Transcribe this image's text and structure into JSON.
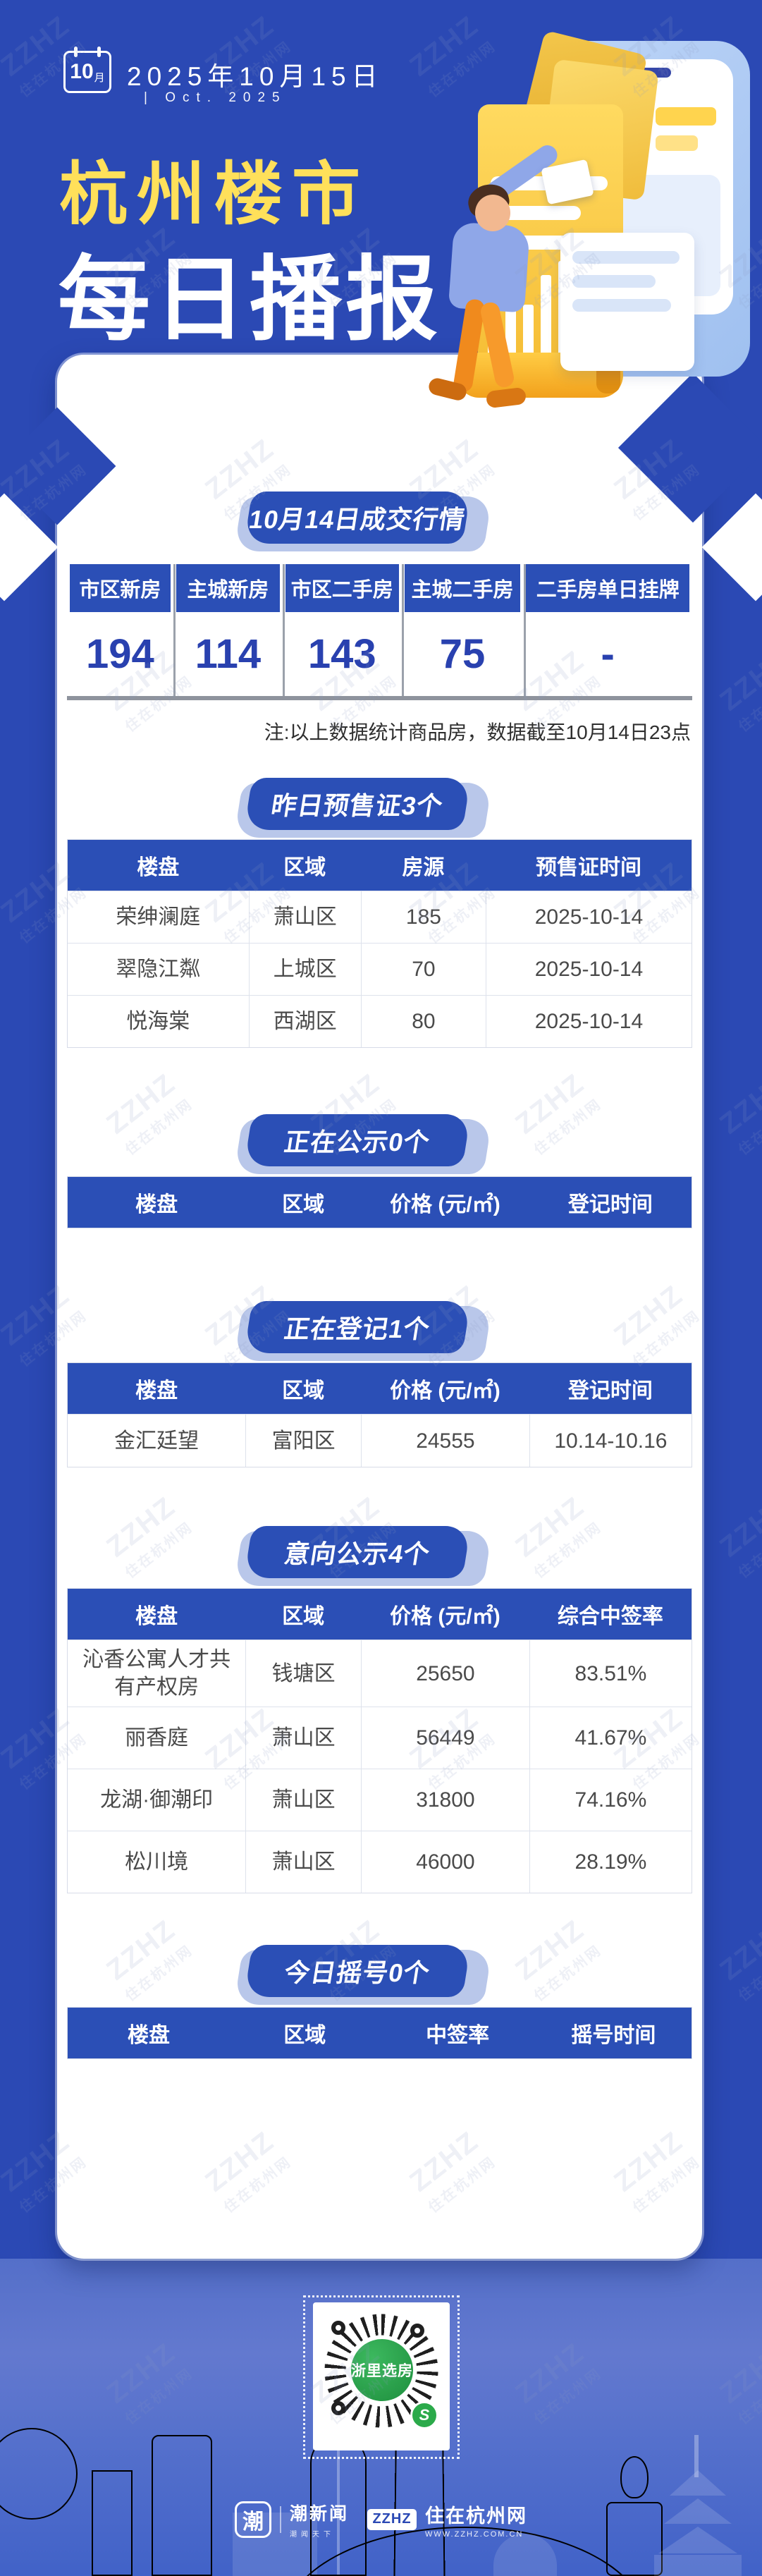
{
  "colors": {
    "page_blue": "#2B49B4",
    "banner_blue": "#2B4FB6",
    "number_blue": "#2941AF",
    "title_yellow": "#FFE05A",
    "qr_green": "#2BA14D"
  },
  "watermark": {
    "line1": "ZZHZ",
    "line2": "住在杭州网"
  },
  "header": {
    "calendar_month_num": "10",
    "calendar_month_unit": "月",
    "date": "2025年10月15日",
    "date_en": "| Oct. 2025",
    "title_line1": "杭州楼市",
    "title_line2": "每日播报"
  },
  "market": {
    "banner": "10月14日成交行情",
    "columns": [
      "市区新房",
      "主城新房",
      "市区二手房",
      "主城二手房",
      "二手房单日挂牌"
    ],
    "values": [
      "194",
      "114",
      "143",
      "75",
      "-"
    ],
    "note": "注:以上数据统计商品房，数据截至10月14日23点"
  },
  "presale": {
    "banner": "昨日预售证3个",
    "columns": [
      "楼盘",
      "区域",
      "房源",
      "预售证时间"
    ],
    "rows": [
      [
        "荣绅澜庭",
        "萧山区",
        "185",
        "2025-10-14"
      ],
      [
        "翠隐江粼",
        "上城区",
        "70",
        "2025-10-14"
      ],
      [
        "悦海棠",
        "西湖区",
        "80",
        "2025-10-14"
      ]
    ]
  },
  "publicity": {
    "banner": "正在公示0个",
    "columns": [
      "楼盘",
      "区域",
      "价格 (元/㎡)",
      "登记时间"
    ],
    "rows": []
  },
  "registering": {
    "banner": "正在登记1个",
    "columns": [
      "楼盘",
      "区域",
      "价格 (元/㎡)",
      "登记时间"
    ],
    "rows": [
      [
        "金汇廷望",
        "富阳区",
        "24555",
        "10.14-10.16"
      ]
    ]
  },
  "intention": {
    "banner": "意向公示4个",
    "columns": [
      "楼盘",
      "区域",
      "价格 (元/㎡)",
      "综合中签率"
    ],
    "rows": [
      [
        "沁香公寓人才共有产权房",
        "钱塘区",
        "25650",
        "83.51%"
      ],
      [
        "丽香庭",
        "萧山区",
        "56449",
        "41.67%"
      ],
      [
        "龙湖·御潮印",
        "萧山区",
        "31800",
        "74.16%"
      ],
      [
        "松川境",
        "萧山区",
        "46000",
        "28.19%"
      ]
    ]
  },
  "lottery": {
    "banner": "今日摇号0个",
    "columns": [
      "楼盘",
      "区域",
      "中签率",
      "摇号时间"
    ],
    "rows": []
  },
  "footer": {
    "qr_label": "浙里选房",
    "logo1_icon": "潮",
    "logo1_text": "潮新闻",
    "logo1_sub": "潮闻天下",
    "logo2_badge": "ZZHZ",
    "logo2_text": "住在杭州网",
    "logo2_sub": "WWW.ZZHZ.COM.CN"
  }
}
